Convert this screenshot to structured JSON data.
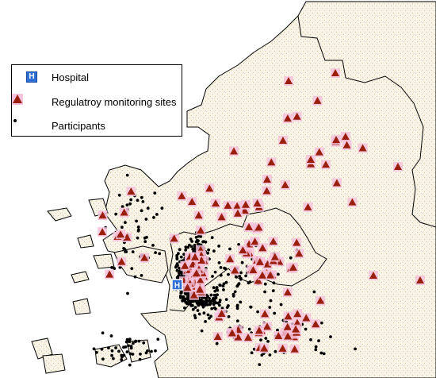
{
  "legend": {
    "hospital_label": "Hospital",
    "hospital_glyph": "H",
    "monitoring_label": "Regulatroy monitoring sites",
    "participants_label": "Participants"
  },
  "colors": {
    "land": "#f7f3e6",
    "land_dots": "#d8c39a",
    "boundary": "#000000",
    "site_fill": "#9a1e0c",
    "site_halo": "#f6c3dc",
    "participant": "#000000",
    "hospital": "#2f6fd6"
  },
  "icons": {
    "hospital": "hospital-h-icon",
    "monitoring_site": "triangle-icon",
    "participant": "dot-icon"
  },
  "counts": {
    "monitoring_sites_shown": 146,
    "participants_shown": 900
  }
}
